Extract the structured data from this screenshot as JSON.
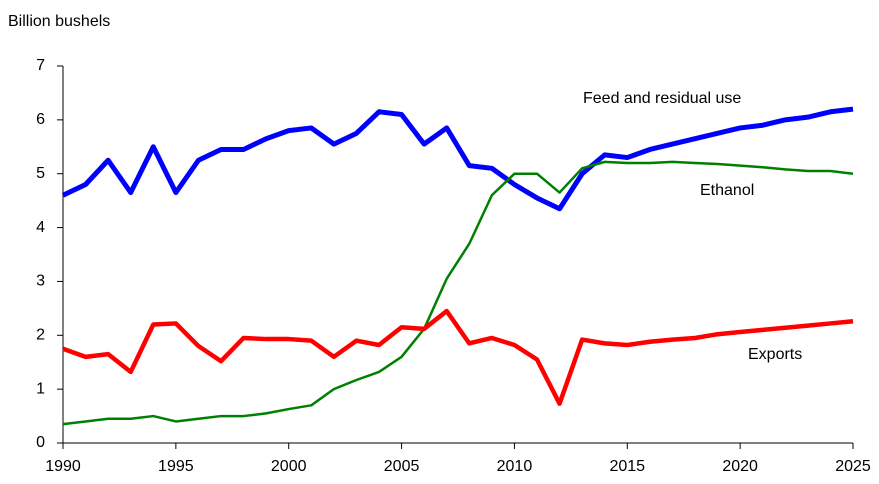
{
  "chart_data": {
    "type": "line",
    "y_label": "Billion bushels",
    "x": [
      1990,
      1991,
      1992,
      1993,
      1994,
      1995,
      1996,
      1997,
      1998,
      1999,
      2000,
      2001,
      2002,
      2003,
      2004,
      2005,
      2006,
      2007,
      2008,
      2009,
      2010,
      2011,
      2012,
      2013,
      2014,
      2015,
      2016,
      2017,
      2018,
      2019,
      2020,
      2021,
      2022,
      2023,
      2024,
      2025
    ],
    "series": [
      {
        "name": "Feed and residual use",
        "color": "#0000ff",
        "values": [
          4.6,
          4.8,
          5.25,
          4.65,
          5.5,
          4.65,
          5.25,
          5.45,
          5.45,
          5.65,
          5.8,
          5.85,
          5.55,
          5.75,
          6.15,
          6.1,
          5.55,
          5.85,
          5.15,
          5.1,
          4.8,
          4.55,
          4.35,
          5.0,
          5.35,
          5.3,
          5.45,
          5.55,
          5.65,
          5.75,
          5.85,
          5.9,
          6.0,
          6.05,
          6.15,
          6.2
        ]
      },
      {
        "name": "Ethanol",
        "color": "#008000",
        "values": [
          0.35,
          0.4,
          0.45,
          0.45,
          0.5,
          0.4,
          0.45,
          0.5,
          0.5,
          0.55,
          0.63,
          0.7,
          1.0,
          1.17,
          1.32,
          1.6,
          2.12,
          3.05,
          3.7,
          4.6,
          5.0,
          5.0,
          4.65,
          5.1,
          5.22,
          5.2,
          5.2,
          5.22,
          5.2,
          5.18,
          5.15,
          5.12,
          5.08,
          5.05,
          5.05,
          5.0
        ]
      },
      {
        "name": "Exports",
        "color": "#ff0000",
        "values": [
          1.75,
          1.6,
          1.65,
          1.32,
          2.2,
          2.22,
          1.8,
          1.52,
          1.95,
          1.93,
          1.93,
          1.9,
          1.6,
          1.9,
          1.82,
          2.15,
          2.12,
          2.45,
          1.85,
          1.95,
          1.82,
          1.55,
          0.73,
          1.92,
          1.85,
          1.82,
          1.88,
          1.92,
          1.95,
          2.02,
          2.06,
          2.1,
          2.14,
          2.18,
          2.22,
          2.26
        ]
      }
    ],
    "xlim": [
      1990,
      2025
    ],
    "xticks": [
      1990,
      1995,
      2000,
      2005,
      2010,
      2015,
      2020,
      2025
    ],
    "ylim": [
      0,
      7
    ],
    "yticks": [
      0,
      1,
      2,
      3,
      4,
      5,
      6,
      7
    ],
    "grid": false
  }
}
